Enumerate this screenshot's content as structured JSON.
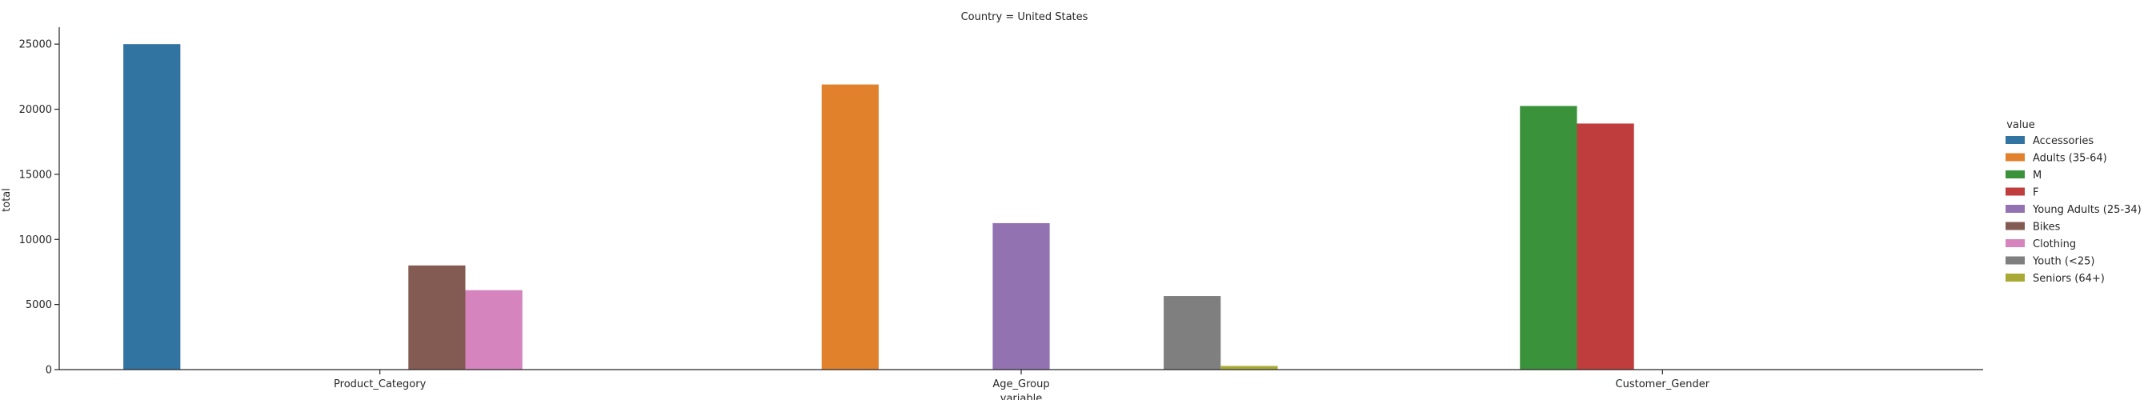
{
  "chart_data": {
    "type": "bar",
    "title": "Country = United States",
    "xlabel": "variable",
    "ylabel": "total",
    "ylim": [
      0,
      26300
    ],
    "yticks": [
      0,
      5000,
      10000,
      15000,
      20000,
      25000
    ],
    "categories": [
      "Product_Category",
      "Age_Group",
      "Customer_Gender"
    ],
    "legend": {
      "title": "value",
      "placement": "right",
      "entries": [
        {
          "name": "Accessories",
          "color": "#3274a1"
        },
        {
          "name": "Adults (35-64)",
          "color": "#e1812c"
        },
        {
          "name": "M",
          "color": "#3a923a"
        },
        {
          "name": "F",
          "color": "#c03d3e"
        },
        {
          "name": "Young Adults (25-34)",
          "color": "#9372b2"
        },
        {
          "name": "Bikes",
          "color": "#845b53"
        },
        {
          "name": "Clothing",
          "color": "#d684bd"
        },
        {
          "name": "Youth (<25)",
          "color": "#7f7f7f"
        },
        {
          "name": "Seniors (64+)",
          "color": "#a9aa35"
        }
      ]
    },
    "series": [
      {
        "name": "Accessories",
        "values": [
          25000,
          null,
          null
        ]
      },
      {
        "name": "Adults (35-64)",
        "values": [
          null,
          21900,
          null
        ]
      },
      {
        "name": "M",
        "values": [
          null,
          null,
          20250
        ]
      },
      {
        "name": "F",
        "values": [
          null,
          null,
          18900
        ]
      },
      {
        "name": "Young Adults (25-34)",
        "values": [
          null,
          11250,
          null
        ]
      },
      {
        "name": "Bikes",
        "values": [
          8000,
          null,
          null
        ]
      },
      {
        "name": "Clothing",
        "values": [
          6100,
          null,
          null
        ]
      },
      {
        "name": "Youth (<25)",
        "values": [
          null,
          5650,
          null
        ]
      },
      {
        "name": "Seniors (64+)",
        "values": [
          null,
          280,
          null
        ]
      }
    ]
  }
}
